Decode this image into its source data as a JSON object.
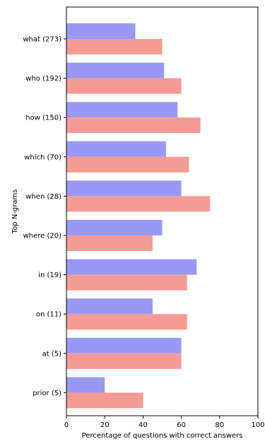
{
  "chart_data": {
    "type": "bar",
    "orientation": "horizontal",
    "categories": [
      "what (273)",
      "who (192)",
      "how (150)",
      "which (70)",
      "when (28)",
      "where (20)",
      "in (19)",
      "on (11)",
      "at (5)",
      "prior (5)"
    ],
    "series": [
      {
        "color": "#9999f5",
        "values": [
          36,
          51,
          58,
          52,
          60,
          50,
          68,
          45,
          60,
          20
        ]
      },
      {
        "color": "#f59b95",
        "values": [
          50,
          60,
          70,
          64,
          75,
          45,
          63,
          63,
          60,
          40
        ]
      }
    ],
    "xlabel": "Percentage of questions with correct answers",
    "ylabel": "Top N-grams",
    "xlim": [
      0,
      100
    ],
    "xticks": [
      "0",
      "20",
      "40",
      "60",
      "80",
      "100"
    ],
    "grid": false,
    "legend": "none"
  }
}
